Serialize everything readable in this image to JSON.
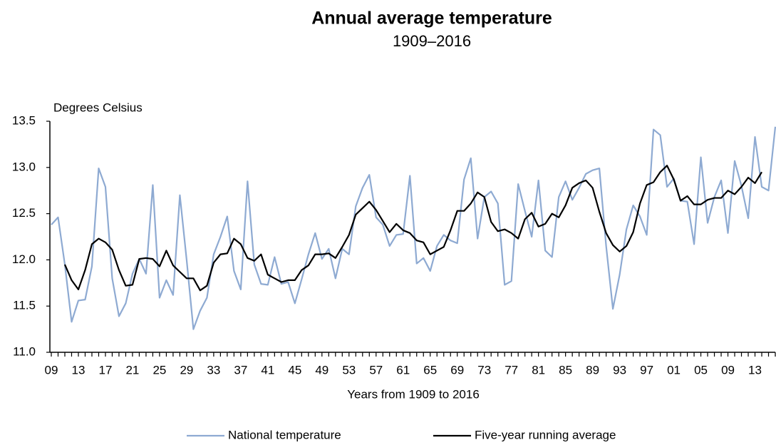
{
  "chart_data": {
    "type": "line",
    "title": "Annual average temperature",
    "subtitle": "1909–2016",
    "y_axis_label": "Degrees Celsius",
    "x_axis_label": "Years from 1909 to 2016",
    "categories": [
      "09",
      null,
      null,
      null,
      "13",
      null,
      null,
      null,
      "17",
      null,
      null,
      null,
      "21",
      null,
      null,
      null,
      "25",
      null,
      null,
      null,
      "29",
      null,
      null,
      null,
      "33",
      null,
      null,
      null,
      "37",
      null,
      null,
      null,
      "41",
      null,
      null,
      null,
      "45",
      null,
      null,
      null,
      "49",
      null,
      null,
      null,
      "53",
      null,
      null,
      null,
      "57",
      null,
      null,
      null,
      "61",
      null,
      null,
      null,
      "65",
      null,
      null,
      null,
      "69",
      null,
      null,
      null,
      "73",
      null,
      null,
      null,
      "77",
      null,
      null,
      null,
      "81",
      null,
      null,
      null,
      "85",
      null,
      null,
      null,
      "89",
      null,
      null,
      null,
      "93",
      null,
      null,
      null,
      "97",
      null,
      null,
      null,
      "01",
      null,
      null,
      null,
      "05",
      null,
      null,
      null,
      "09",
      null,
      null,
      null,
      "13",
      null,
      null,
      null
    ],
    "series": [
      {
        "name": "National temperature",
        "color": "#8eaad2",
        "width": 2.2,
        "values": [
          12.38,
          12.46,
          11.95,
          11.33,
          11.56,
          11.57,
          11.93,
          12.99,
          12.79,
          11.8,
          11.39,
          11.53,
          11.85,
          12.01,
          11.85,
          12.81,
          11.59,
          11.78,
          11.62,
          12.7,
          12.0,
          11.25,
          11.45,
          11.59,
          12.06,
          12.25,
          12.47,
          11.88,
          11.68,
          12.85,
          11.95,
          11.74,
          11.73,
          12.03,
          11.74,
          11.76,
          11.53,
          11.79,
          12.06,
          12.29,
          12.01,
          12.12,
          11.8,
          12.12,
          12.06,
          12.58,
          12.78,
          12.92,
          12.46,
          12.38,
          12.15,
          12.27,
          12.28,
          12.91,
          11.96,
          12.02,
          11.88,
          12.15,
          12.27,
          12.21,
          12.18,
          12.87,
          13.1,
          12.23,
          12.68,
          12.74,
          12.61,
          11.73,
          11.77,
          12.82,
          12.53,
          12.25,
          12.86,
          12.1,
          12.03,
          12.68,
          12.85,
          12.65,
          12.78,
          12.93,
          12.97,
          12.99,
          12.15,
          11.47,
          11.84,
          12.33,
          12.59,
          12.47,
          12.27,
          13.41,
          13.35,
          12.79,
          12.88,
          12.64,
          12.63,
          12.17,
          13.11,
          12.4,
          12.68,
          12.86,
          12.29,
          13.07,
          12.8,
          12.45,
          13.33,
          12.79,
          12.75,
          13.44
        ]
      },
      {
        "name": "Five-year running average",
        "color": "#000000",
        "width": 2.2,
        "values": [
          null,
          null,
          11.95,
          11.78,
          11.68,
          11.89,
          12.17,
          12.23,
          12.19,
          12.11,
          11.89,
          11.72,
          11.73,
          12.01,
          12.02,
          12.01,
          11.93,
          12.1,
          11.94,
          11.87,
          11.8,
          11.8,
          11.67,
          11.72,
          11.97,
          12.06,
          12.07,
          12.23,
          12.17,
          12.02,
          11.99,
          12.06,
          11.84,
          11.8,
          11.76,
          11.78,
          11.78,
          11.89,
          11.94,
          12.06,
          12.06,
          12.07,
          12.02,
          12.14,
          12.27,
          12.49,
          12.56,
          12.63,
          12.54,
          12.42,
          12.3,
          12.39,
          12.32,
          12.29,
          12.21,
          12.19,
          12.06,
          12.1,
          12.14,
          12.32,
          12.53,
          12.53,
          12.61,
          12.73,
          12.68,
          12.41,
          12.31,
          12.33,
          12.29,
          12.23,
          12.44,
          12.51,
          12.36,
          12.39,
          12.5,
          12.46,
          12.59,
          12.78,
          12.83,
          12.86,
          12.78,
          12.52,
          12.29,
          12.16,
          12.09,
          12.15,
          12.3,
          12.61,
          12.81,
          12.84,
          12.95,
          13.02,
          12.87,
          12.64,
          12.69,
          12.6,
          12.6,
          12.65,
          12.67,
          12.67,
          12.75,
          12.71,
          12.79,
          12.89,
          12.83,
          12.95,
          null,
          null
        ]
      }
    ],
    "ylim": [
      11,
      13.5
    ],
    "yticks": [
      {
        "value": 11,
        "label": "11.0"
      },
      11.5,
      {
        "value": 12,
        "label": "12.0"
      },
      12.5,
      {
        "value": 13,
        "label": "13.0"
      },
      13.5
    ],
    "grid": false,
    "legend": "bottom"
  }
}
